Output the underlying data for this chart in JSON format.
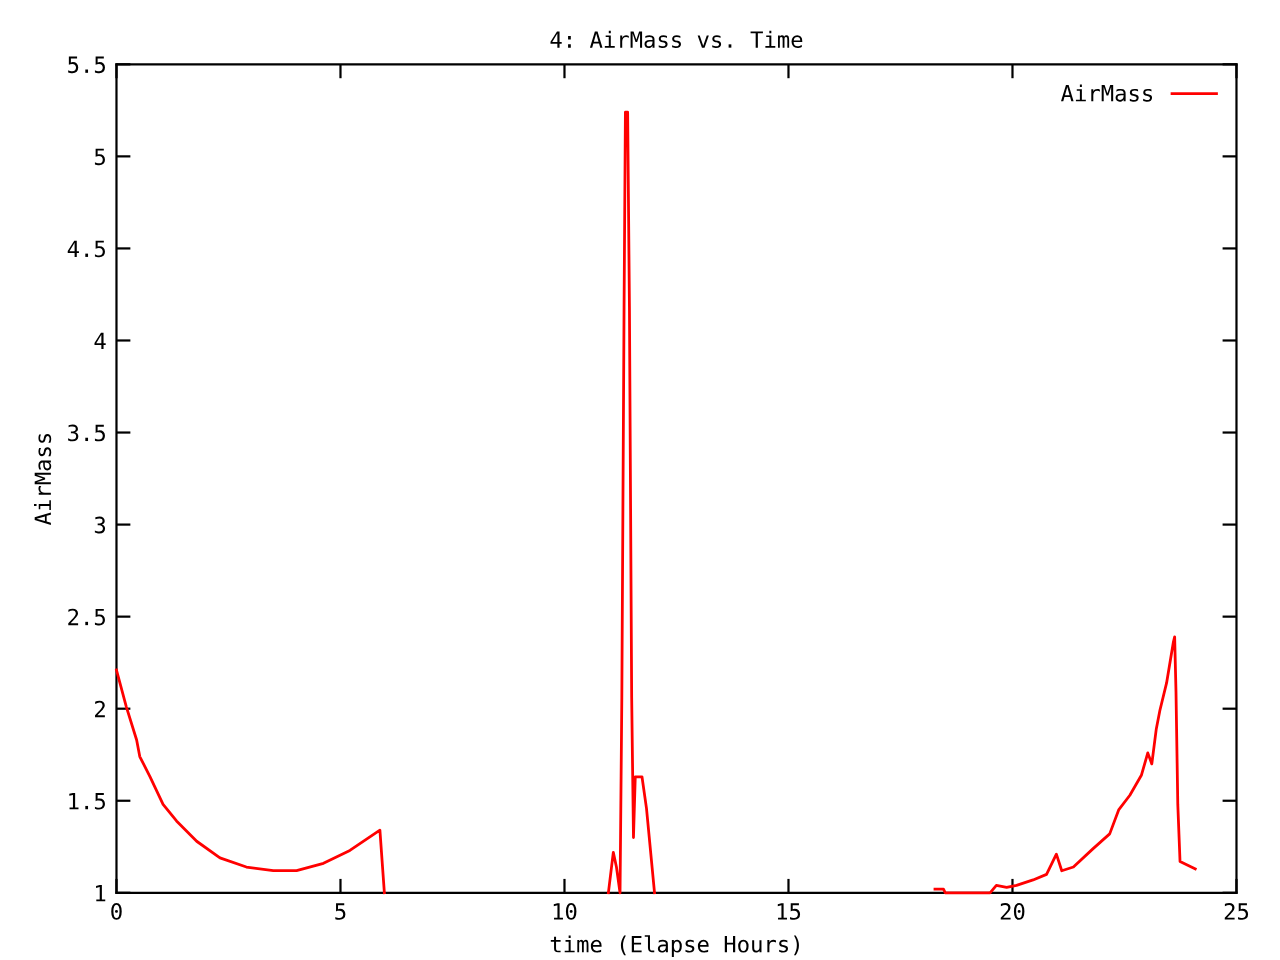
{
  "chart_data": {
    "type": "line",
    "title": "4: AirMass vs. Time",
    "xlabel": "time (Elapse Hours)",
    "ylabel": "AirMass",
    "x": [
      0,
      0.22,
      0.45,
      0.52,
      0.75,
      1.04,
      1.34,
      1.79,
      2.31,
      2.9,
      3.5,
      4.02,
      4.62,
      5.21,
      5.88,
      5.98,
      8.5,
      10.98,
      11.09,
      11.16,
      11.24,
      11.28,
      11.33,
      11.36,
      11.41,
      11.45,
      11.5,
      11.54,
      11.58,
      11.73,
      11.83,
      12.01,
      15,
      18.27,
      18.46,
      18.5,
      18.83,
      19.5,
      19.64,
      19.87,
      20.09,
      20.46,
      20.76,
      20.98,
      21.1,
      21.36,
      21.8,
      22.17,
      22.37,
      22.62,
      22.88,
      23.02,
      23.11,
      23.21,
      23.29,
      23.44,
      23.59,
      23.62,
      23.65,
      23.69,
      23.74,
      24.08
    ],
    "series": [
      {
        "name": "AirMass",
        "color": "#ff0000",
        "values": [
          2.21,
          2.01,
          1.83,
          1.74,
          1.63,
          1.48,
          1.39,
          1.28,
          1.19,
          1.14,
          1.12,
          1.12,
          1.16,
          1.23,
          1.34,
          1.0,
          null,
          1.0,
          1.22,
          1.14,
          1.0,
          2.06,
          4.18,
          5.24,
          5.24,
          4.18,
          2.06,
          1.3,
          1.63,
          1.63,
          1.46,
          1.0,
          null,
          1.02,
          1.02,
          1.0,
          1.0,
          1.0,
          1.04,
          1.03,
          1.04,
          1.07,
          1.1,
          1.21,
          1.12,
          1.14,
          1.24,
          1.32,
          1.45,
          1.53,
          1.64,
          1.76,
          1.7,
          1.89,
          1.99,
          2.14,
          2.36,
          2.39,
          2.09,
          1.48,
          1.17,
          1.13
        ]
      }
    ],
    "xlim": [
      0,
      25
    ],
    "xticks": [
      0,
      5,
      10,
      15,
      20,
      25
    ],
    "ylim": [
      1,
      5.5
    ],
    "yticks": [
      1,
      1.5,
      2,
      2.5,
      3,
      3.5,
      4,
      4.5,
      5,
      5.5
    ],
    "grid": false,
    "legend": "top right",
    "line_style": "solid",
    "marker": "none"
  }
}
